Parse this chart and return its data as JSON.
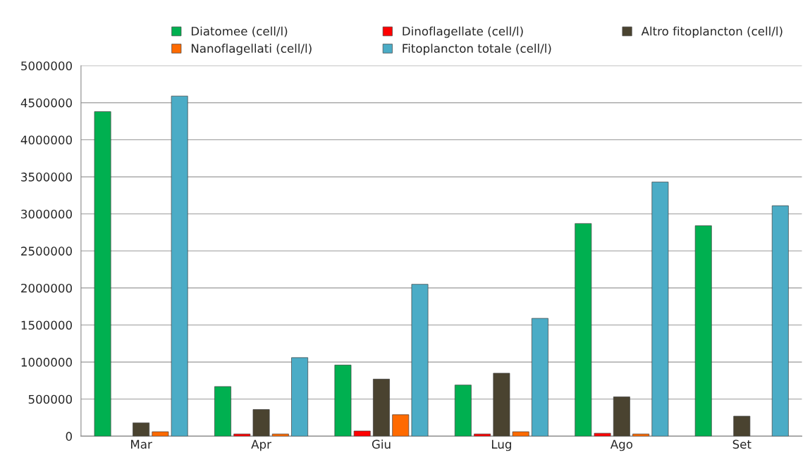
{
  "chart_data": {
    "type": "bar",
    "categories": [
      "Mar",
      "Apr",
      "Giu",
      "Lug",
      "Ago",
      "Set"
    ],
    "series": [
      {
        "name": "Diatomee (cell/l)",
        "color": "#00b050",
        "values": [
          4380000,
          670000,
          960000,
          690000,
          2870000,
          2840000
        ]
      },
      {
        "name": "Dinoflagellate (cell/l)",
        "color": "#ff0000",
        "values": [
          null,
          30000,
          70000,
          30000,
          40000,
          null
        ]
      },
      {
        "name": "Altro fitoplancton (cell/l)",
        "color": "#4a4330",
        "values": [
          180000,
          360000,
          770000,
          850000,
          530000,
          270000
        ]
      },
      {
        "name": "Nanoflagellati (cell/l)",
        "color": "#ff6a00",
        "values": [
          60000,
          30000,
          290000,
          60000,
          30000,
          null
        ]
      },
      {
        "name": "Fitoplancton totale (cell/l)",
        "color": "#4bacc6",
        "values": [
          4590000,
          1060000,
          2050000,
          1590000,
          3430000,
          3110000
        ]
      }
    ],
    "ylim": [
      0,
      5000000
    ],
    "yticks": [
      0,
      500000,
      1000000,
      1500000,
      2000000,
      2500000,
      3000000,
      3500000,
      4000000,
      4500000,
      5000000
    ],
    "grid": "y",
    "legend": "top"
  }
}
